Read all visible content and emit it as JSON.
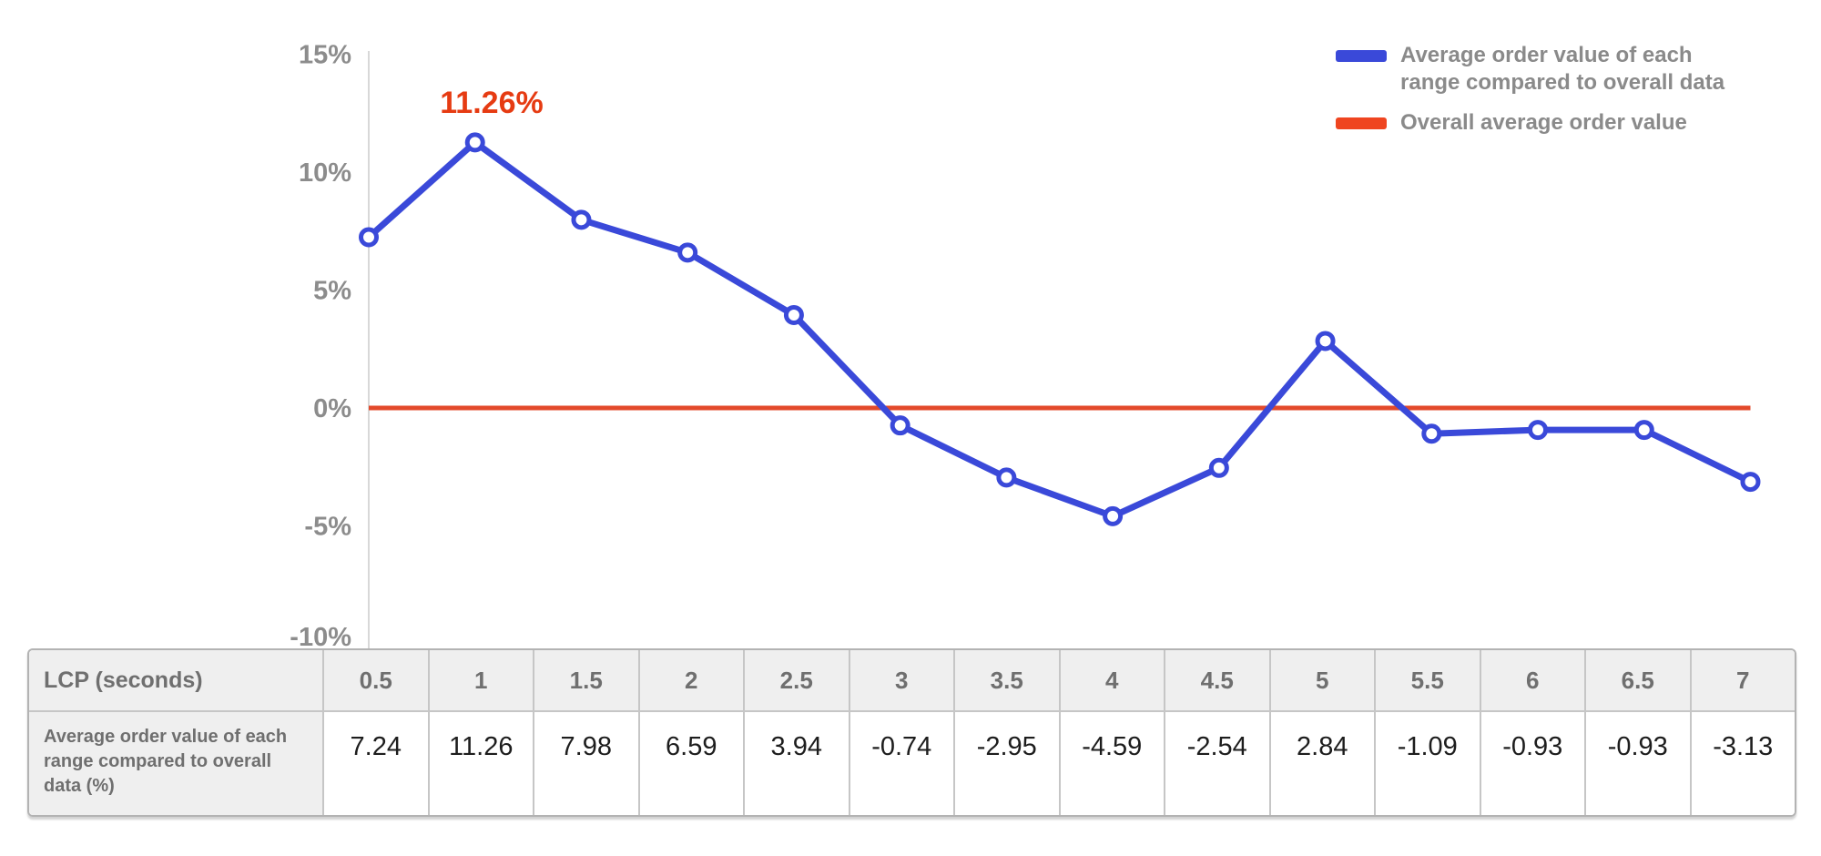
{
  "legend": {
    "items": [
      {
        "name": "average-order-value-series",
        "color": "#3a49d9",
        "label_line1": "Average order value of each",
        "label_line2": "range compared to overall data"
      },
      {
        "name": "overall-average-series",
        "color": "#ef4520",
        "label_line1": "Overall average order value",
        "label_line2": ""
      }
    ]
  },
  "chart_data": {
    "type": "line",
    "title": "",
    "xlabel": "LCP (seconds)",
    "ylabel": "",
    "x": [
      0.5,
      1,
      1.5,
      2,
      2.5,
      3,
      3.5,
      4,
      4.5,
      5,
      5.5,
      6,
      6.5,
      7
    ],
    "series": [
      {
        "name": "Average order value of each range compared to overall data",
        "color": "#3a49d9",
        "values": [
          7.24,
          11.26,
          7.98,
          6.59,
          3.94,
          -0.74,
          -2.95,
          -4.59,
          -2.54,
          2.84,
          -1.09,
          -0.93,
          -0.93,
          -3.13
        ]
      },
      {
        "name": "Overall average order value",
        "color": "#e34a2b",
        "constant_value": 0
      }
    ],
    "y_ticks": [
      {
        "label": "15%",
        "value": 15
      },
      {
        "label": "10%",
        "value": 10
      },
      {
        "label": "5%",
        "value": 5
      },
      {
        "label": "0%",
        "value": 0
      },
      {
        "label": "-5%",
        "value": -5
      },
      {
        "label": "-10%",
        "value": -10
      }
    ],
    "ylim": [
      -10,
      15
    ],
    "grid": "none",
    "legend_position": "top-right",
    "annotation": {
      "text": "11.26%",
      "x": 1,
      "value": 11.26,
      "color": "#e63b12"
    },
    "marker": "circle-open",
    "axis_color": "#d8d8d8"
  },
  "table": {
    "header_label": "LCP (seconds)",
    "row_label": "Average order value of each range compared to overall data (%)",
    "columns": [
      "0.5",
      "1",
      "1.5",
      "2",
      "2.5",
      "3",
      "3.5",
      "4",
      "4.5",
      "5",
      "5.5",
      "6",
      "6.5",
      "7"
    ],
    "values": [
      "7.24",
      "11.26",
      "7.98",
      "6.59",
      "3.94",
      "-0.74",
      "-2.95",
      "-4.59",
      "-2.54",
      "2.84",
      "-1.09",
      "-0.93",
      "-0.93",
      "-3.13"
    ]
  }
}
